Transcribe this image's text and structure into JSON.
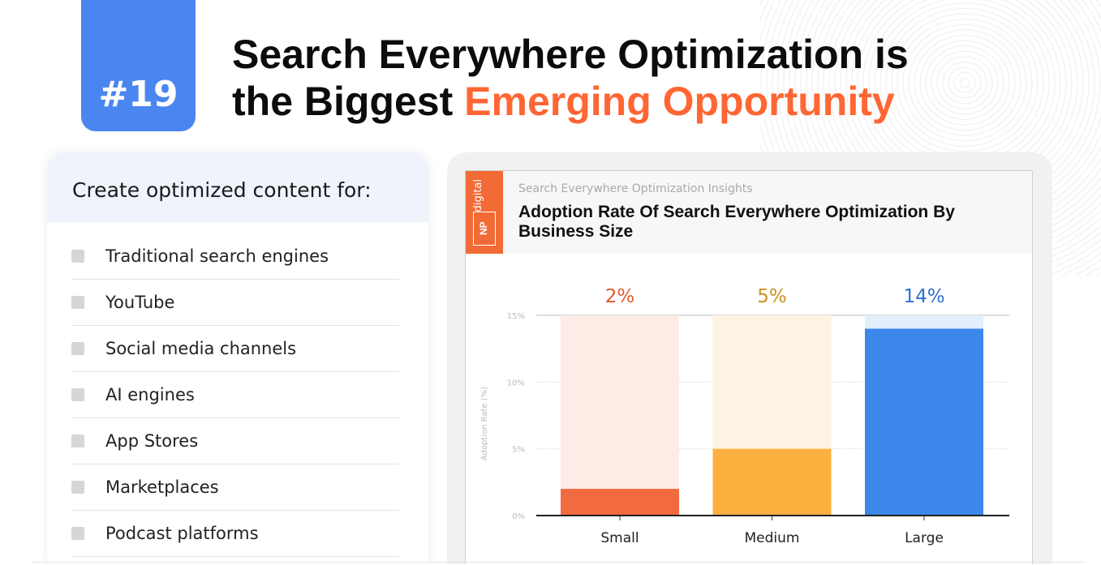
{
  "badge": "#19",
  "title": {
    "line1": "Search Everywhere Optimization is",
    "line2_plain": "the Biggest ",
    "line2_highlight": "Emerging Opportunity"
  },
  "left_panel": {
    "heading": "Create optimized content for:",
    "items": [
      "Traditional search engines",
      "YouTube",
      "Social media channels",
      "AI engines",
      "App Stores",
      "Marketplaces",
      "Podcast platforms"
    ]
  },
  "chart_card": {
    "logo": "digital",
    "logo_mark": "NP",
    "subtitle": "Search Everywhere Optimization Insights",
    "title": "Adoption Rate Of Search Everywhere Optimization By Business Size"
  },
  "chart_data": {
    "type": "bar",
    "title": "Adoption Rate Of Search Everywhere Optimization By Business Size",
    "categories": [
      "Small",
      "Medium",
      "Large"
    ],
    "values": [
      2,
      5,
      14
    ],
    "data_labels": [
      "2%",
      "5%",
      "14%"
    ],
    "ylabel": "Adoption Rate (%)",
    "ylim": [
      0,
      15
    ],
    "yticks": [
      "0%",
      "5%",
      "10%",
      "15%"
    ],
    "grid": true,
    "colors": {
      "bar": [
        "#f26a3f",
        "#fbb040",
        "#3b87ea"
      ],
      "bg": [
        "#fdece6",
        "#fef3e2",
        "#e3effc"
      ],
      "label": [
        "#e05a2a",
        "#c9921e",
        "#2f6fd0"
      ]
    }
  }
}
